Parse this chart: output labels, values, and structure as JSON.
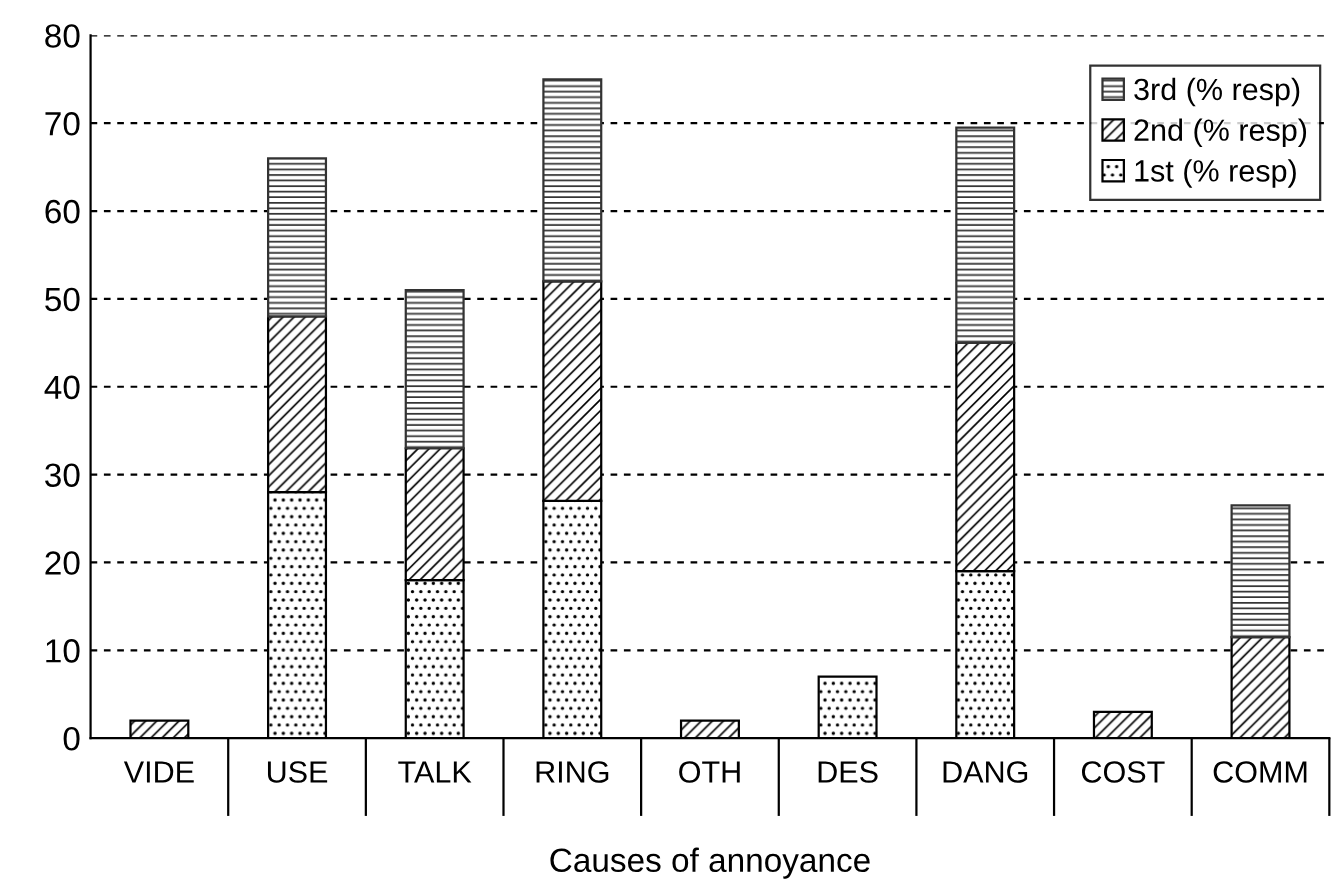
{
  "chart_data": {
    "type": "bar",
    "stacked": true,
    "xlabel": "Causes of annoyance",
    "categories": [
      "VIDE",
      "USE",
      "TALK",
      "RING",
      "OTH",
      "DES",
      "DANG",
      "COST",
      "COMM"
    ],
    "series": [
      {
        "name": "1st (% resp)",
        "color": "#000000",
        "values": [
          null,
          28,
          18,
          27,
          null,
          7,
          19,
          null,
          null
        ]
      },
      {
        "name": "2nd (% resp)",
        "color": "#000000",
        "values": [
          2,
          20,
          15,
          25,
          2,
          null,
          26,
          3,
          11.5
        ]
      },
      {
        "name": "3rd (% resp)",
        "color": "#333333",
        "values": [
          null,
          18,
          18,
          23,
          null,
          null,
          24.5,
          null,
          15
        ]
      }
    ],
    "ylim": [
      0,
      80
    ],
    "yticks": [
      0,
      10,
      20,
      30,
      40,
      50,
      60,
      70,
      80
    ],
    "grid": "y",
    "legend": "top right"
  }
}
